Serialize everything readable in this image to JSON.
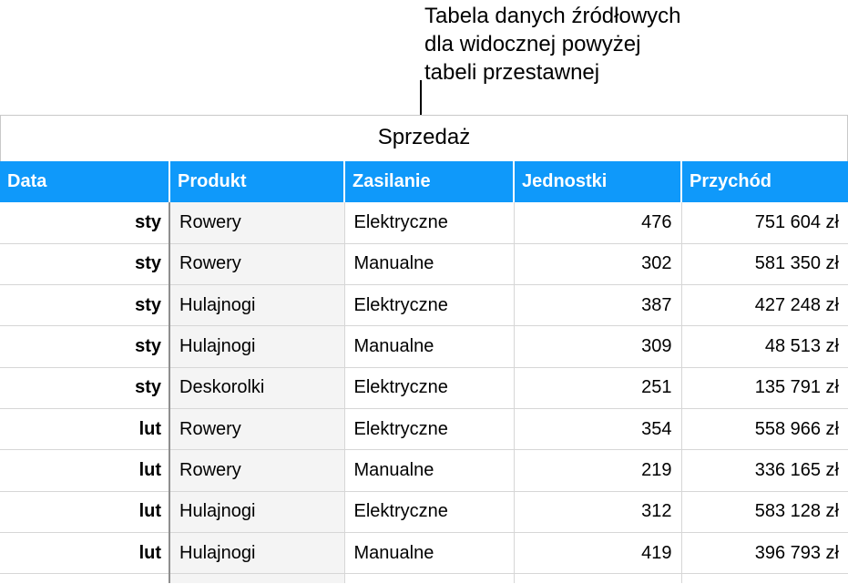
{
  "callout": {
    "lines": [
      "Tabela danych źródłowych",
      "dla widocznej powyżej",
      "tabeli przestawnej"
    ]
  },
  "table": {
    "name": "Sprzedaż",
    "headers": [
      "Data",
      "Produkt",
      "Zasilanie",
      "Jednostki",
      "Przychód"
    ],
    "rows": [
      [
        "sty",
        "Rowery",
        "Elektryczne",
        "476",
        "751 604  zł"
      ],
      [
        "sty",
        "Rowery",
        "Manualne",
        "302",
        "581 350  zł"
      ],
      [
        "sty",
        "Hulajnogi",
        "Elektryczne",
        "387",
        "427 248  zł"
      ],
      [
        "sty",
        "Hulajnogi",
        "Manualne",
        "309",
        "48 513  zł"
      ],
      [
        "sty",
        "Deskorolki",
        "Elektryczne",
        "251",
        "135 791  zł"
      ],
      [
        "lut",
        "Rowery",
        "Elektryczne",
        "354",
        "558 966  zł"
      ],
      [
        "lut",
        "Rowery",
        "Manualne",
        "219",
        "336 165  zł"
      ],
      [
        "lut",
        "Hulajnogi",
        "Elektryczne",
        "312",
        "583 128  zł"
      ],
      [
        "lut",
        "Hulajnogi",
        "Manualne",
        "419",
        "396 793  zł"
      ]
    ]
  },
  "colors": {
    "header_bg": "#0f99fa",
    "header_text": "#ffffff",
    "band": "#f4f4f4"
  }
}
